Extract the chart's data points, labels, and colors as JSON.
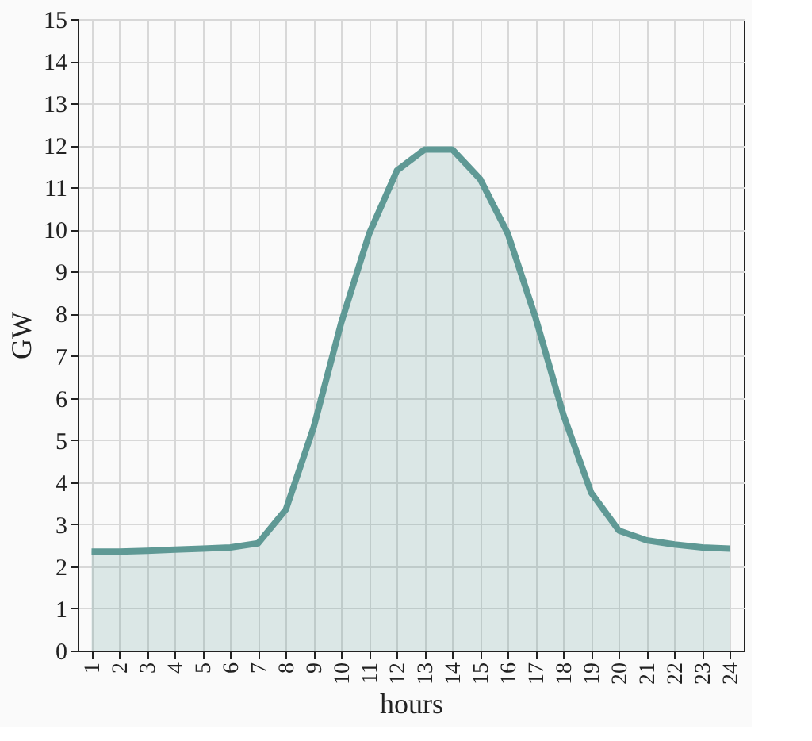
{
  "chart_data": {
    "type": "area",
    "xlabel": "hours",
    "ylabel": "GW",
    "categories": [
      "1",
      "2",
      "3",
      "4",
      "5",
      "6",
      "7",
      "8",
      "9",
      "10",
      "11",
      "12",
      "13",
      "14",
      "15",
      "16",
      "17",
      "18",
      "19",
      "20",
      "21",
      "22",
      "23",
      "24"
    ],
    "series": [
      {
        "color": "#5f9995",
        "values": [
          2.35,
          2.35,
          2.37,
          2.4,
          2.42,
          2.45,
          2.55,
          3.35,
          5.3,
          7.8,
          9.9,
          11.4,
          11.9,
          11.9,
          11.2,
          9.9,
          7.9,
          5.6,
          3.75,
          2.85,
          2.62,
          2.52,
          2.45,
          2.42
        ]
      }
    ],
    "ylim": [
      0,
      15
    ],
    "yticks": [
      0,
      1,
      2,
      3,
      4,
      5,
      6,
      7,
      8,
      9,
      10,
      11,
      12,
      13,
      14,
      15
    ],
    "grid": true
  }
}
